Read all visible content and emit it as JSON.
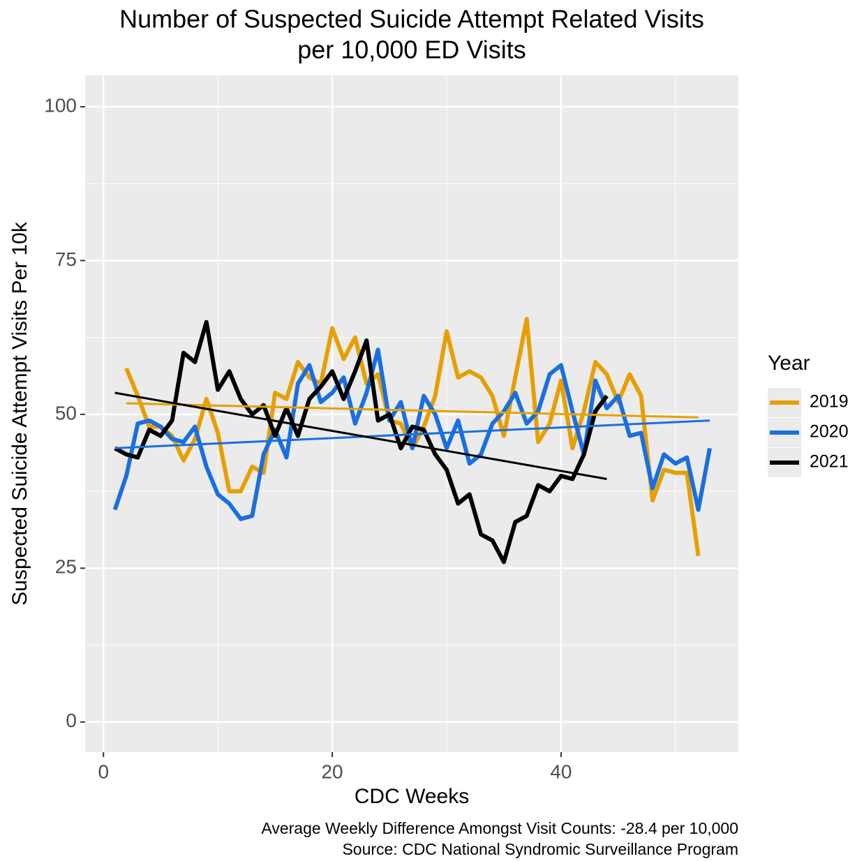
{
  "chart_data": {
    "type": "line",
    "title": [
      "Number of Suspected Suicide Attempt Related Visits",
      "per 10,000 ED Visits"
    ],
    "x_label": "CDC Weeks",
    "y_label": "Suspected Suicide Attempt Visits Per 10k",
    "caption": [
      "Average Weekly Difference Amongst Visit Counts: -28.4 per 10,000",
      "Source: CDC National Syndromic Surveillance Program"
    ],
    "legend_title": "Year",
    "xlim": [
      -1.6,
      55.5
    ],
    "ylim": [
      -4.9,
      105.1
    ],
    "xticks": [
      0,
      20,
      40
    ],
    "yticks": [
      0,
      25,
      50,
      75,
      100
    ],
    "x_minor_grid": [
      10,
      30,
      50
    ],
    "y_minor_grid": [
      12.5,
      37.5,
      62.5,
      87.5
    ],
    "grid": true,
    "series": [
      {
        "name": "2019",
        "color": "#E69F00",
        "x": [
          2,
          3,
          4,
          5,
          6,
          7,
          8,
          9,
          10,
          11,
          12,
          13,
          14,
          15,
          16,
          17,
          18,
          19,
          20,
          21,
          22,
          23,
          24,
          25,
          26,
          27,
          28,
          29,
          30,
          31,
          32,
          33,
          34,
          35,
          36,
          37,
          38,
          39,
          40,
          41,
          42,
          43,
          44,
          45,
          46,
          47,
          48,
          49,
          50,
          51,
          52
        ],
        "values": [
          57.5,
          53,
          48,
          48,
          46.5,
          42.5,
          46,
          52.5,
          47,
          37.5,
          37.5,
          41.5,
          40.5,
          53.5,
          52.5,
          58.5,
          56,
          55,
          64,
          59,
          62.5,
          55,
          56.5,
          49,
          48.5,
          44.5,
          48,
          53,
          63.5,
          56,
          57,
          56,
          53,
          46.5,
          56,
          65.5,
          45.5,
          48.5,
          55.5,
          44.5,
          50.5,
          58.5,
          56.5,
          52,
          56.5,
          53,
          36,
          41,
          40.5,
          40.5,
          27
        ],
        "trend_x": [
          2,
          52
        ],
        "trend": [
          51.8,
          49.5
        ]
      },
      {
        "name": "2020",
        "color": "#1A6FE0",
        "x": [
          1,
          2,
          3,
          4,
          5,
          6,
          7,
          8,
          9,
          10,
          11,
          12,
          13,
          14,
          15,
          16,
          17,
          18,
          19,
          20,
          21,
          22,
          23,
          24,
          25,
          26,
          27,
          28,
          29,
          30,
          31,
          32,
          33,
          34,
          35,
          36,
          37,
          38,
          39,
          40,
          41,
          42,
          43,
          44,
          45,
          46,
          47,
          48,
          49,
          50,
          51,
          52,
          53
        ],
        "values": [
          34.5,
          40,
          48.5,
          49,
          48,
          46,
          45.5,
          48,
          41.5,
          37,
          35.5,
          33,
          33.5,
          43.5,
          47.5,
          43,
          55,
          58,
          52,
          53.5,
          56,
          48.5,
          53.5,
          60.5,
          49,
          52,
          44.5,
          53,
          50,
          44.5,
          49,
          42,
          43.5,
          48.5,
          50.5,
          53.5,
          48.5,
          50.5,
          56.5,
          58,
          50.5,
          43.5,
          55.5,
          51,
          53,
          46.5,
          47,
          38,
          43.5,
          42,
          43,
          34.5,
          44.5
        ],
        "trend_x": [
          1,
          53
        ],
        "trend": [
          44.5,
          49
        ]
      },
      {
        "name": "2021",
        "color": "#000000",
        "x": [
          1,
          2,
          3,
          4,
          5,
          6,
          7,
          8,
          9,
          10,
          11,
          12,
          13,
          14,
          15,
          16,
          17,
          18,
          19,
          20,
          21,
          22,
          23,
          24,
          25,
          26,
          27,
          28,
          29,
          30,
          31,
          32,
          33,
          34,
          35,
          36,
          37,
          38,
          39,
          40,
          41,
          42,
          43,
          44
        ],
        "values": [
          44.5,
          43.5,
          43,
          47.5,
          46.5,
          49,
          60,
          58.5,
          65,
          54,
          57,
          52.5,
          50,
          51.5,
          46.5,
          51,
          46.5,
          52.5,
          54.5,
          57,
          52.5,
          57,
          62,
          49,
          50,
          44.5,
          48,
          47.5,
          43.5,
          41,
          35.5,
          37,
          30.5,
          29.5,
          26,
          32.5,
          33.5,
          38.5,
          37.5,
          40,
          39.5,
          43.5,
          50.5,
          53
        ],
        "trend_x": [
          1,
          44
        ],
        "trend": [
          53.5,
          39.5
        ]
      }
    ]
  }
}
